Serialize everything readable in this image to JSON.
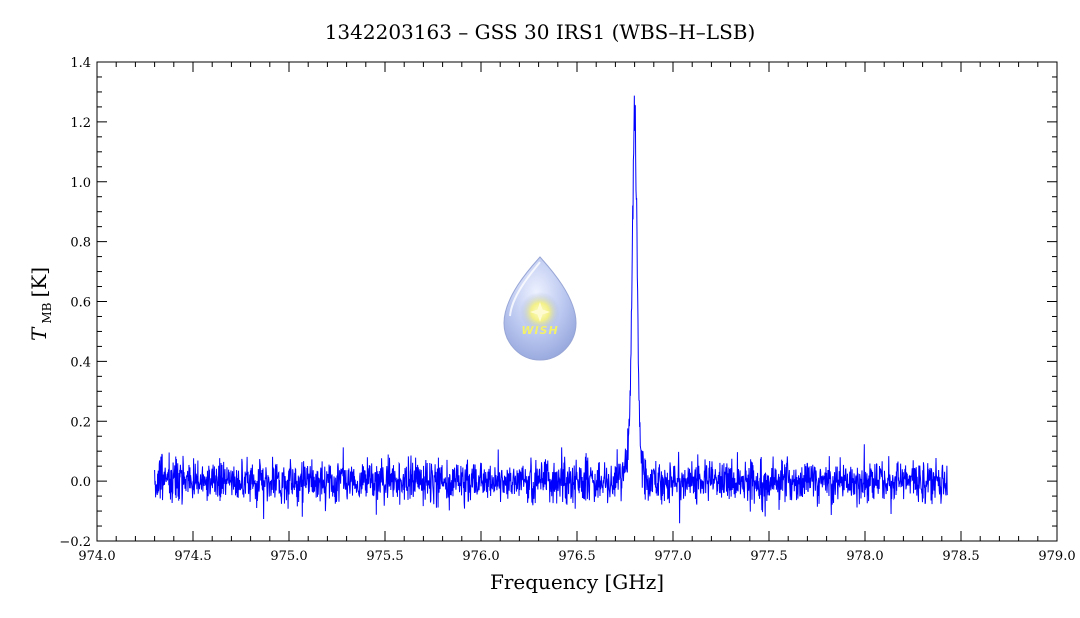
{
  "chart_data": {
    "type": "line",
    "title": "1342203163 – GSS 30 IRS1 (WBS–H–LSB)",
    "xlabel": "Frequency [GHz]",
    "ylabel_main": "T",
    "ylabel_sub": "MB",
    "ylabel_unit": "[K]",
    "xlim": [
      974.0,
      979.0
    ],
    "ylim": [
      -0.2,
      1.4
    ],
    "xticks": [
      974.0,
      974.5,
      975.0,
      975.5,
      976.0,
      976.5,
      977.0,
      977.5,
      978.0,
      978.5,
      979.0
    ],
    "xtick_labels": [
      "974.0",
      "974.5",
      "975.0",
      "975.5",
      "976.0",
      "976.5",
      "977.0",
      "977.5",
      "978.0",
      "978.5",
      "979.0"
    ],
    "yticks": [
      -0.2,
      0.0,
      0.2,
      0.4,
      0.6,
      0.8,
      1.0,
      1.2,
      1.4
    ],
    "ytick_labels": [
      "−0.2",
      "0.0",
      "0.2",
      "0.4",
      "0.6",
      "0.8",
      "1.0",
      "1.2",
      "1.4"
    ],
    "grid": false,
    "series": [
      {
        "color": "#0000ff",
        "x_range": [
          974.3,
          978.43
        ],
        "noise_rms": 0.035,
        "baseline": 0.0,
        "line": {
          "center": 976.8,
          "peak": 1.17,
          "width_ghz": 0.012,
          "wing_amplitude": 0.15,
          "wing_width_ghz": 0.03
        }
      }
    ]
  },
  "logo": {
    "text": "WISH",
    "icon": "water-drop-star-icon"
  }
}
